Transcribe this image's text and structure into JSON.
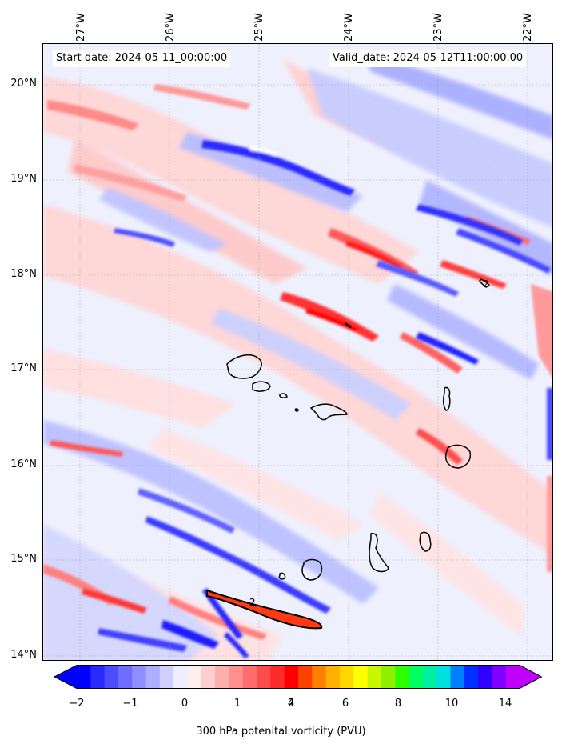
{
  "map": {
    "start_date": "Start date: 2024-05-11_00:00:00",
    "valid_date": "Valid_date: 2024-05-12T11:00:00.00",
    "lon_labels": [
      "27°W",
      "26°W",
      "25°W",
      "24°W",
      "23°W",
      "22°W"
    ],
    "lat_labels": [
      "20°N",
      "19°N",
      "18°N",
      "17°N",
      "16°N",
      "15°N",
      "14°N"
    ],
    "contour_labels": [
      "2",
      "2"
    ],
    "colorbar": {
      "label": "300 hPa potenital vorticity (PVU)",
      "ticks": [
        "−2",
        "−1",
        "0",
        "1",
        "2",
        "4",
        "6",
        "8",
        "10",
        "14"
      ],
      "colors": [
        "#0000ff",
        "#2a2aff",
        "#4b4bff",
        "#6d6dff",
        "#8e8eff",
        "#aeaeff",
        "#cfcfff",
        "#eeeeff",
        "#ffeeee",
        "#ffcfcf",
        "#ffaeae",
        "#ff8e8e",
        "#ff6d6d",
        "#ff4b4b",
        "#ff2a2a",
        "#ff0000",
        "#ff4000",
        "#ff8000",
        "#ffb000",
        "#ffd700",
        "#ffff00",
        "#c8f700",
        "#90ee00",
        "#30ff00",
        "#00ff60",
        "#00f0a0",
        "#00e0e0",
        "#0080ff",
        "#0030ff",
        "#3000ff",
        "#8000ff",
        "#c000ff"
      ],
      "min_color": "#0000ff",
      "max_color": "#c000ff"
    }
  }
}
